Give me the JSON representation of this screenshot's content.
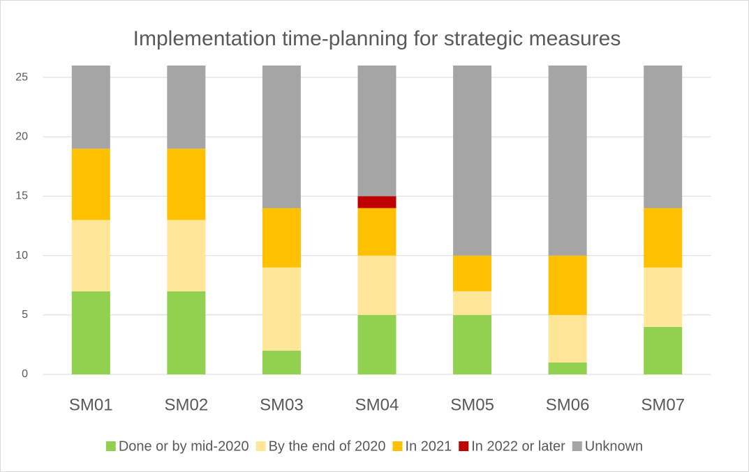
{
  "chart_data": {
    "type": "stacked_bar",
    "title": "Implementation time-planning for strategic measures",
    "categories": [
      "SM01",
      "SM02",
      "SM03",
      "SM04",
      "SM05",
      "SM06",
      "SM07"
    ],
    "series": [
      {
        "name": "Done or by mid-2020",
        "color": "#92d050",
        "values": [
          7,
          7,
          2,
          5,
          5,
          1,
          4
        ]
      },
      {
        "name": "By the end of 2020",
        "color": "#ffe699",
        "values": [
          6,
          6,
          7,
          5,
          2,
          4,
          5
        ]
      },
      {
        "name": "In 2021",
        "color": "#ffc000",
        "values": [
          6,
          6,
          5,
          4,
          3,
          5,
          5
        ]
      },
      {
        "name": "In 2022 or later",
        "color": "#c00000",
        "values": [
          0,
          0,
          0,
          1,
          0,
          0,
          0
        ]
      },
      {
        "name": "Unknown",
        "color": "#a5a5a5",
        "values": [
          7,
          7,
          12,
          11,
          16,
          16,
          12
        ]
      }
    ],
    "ylim": [
      0,
      26
    ],
    "yticks": [
      0,
      5,
      10,
      15,
      20,
      25
    ],
    "grid": true,
    "legend": "bottom"
  }
}
